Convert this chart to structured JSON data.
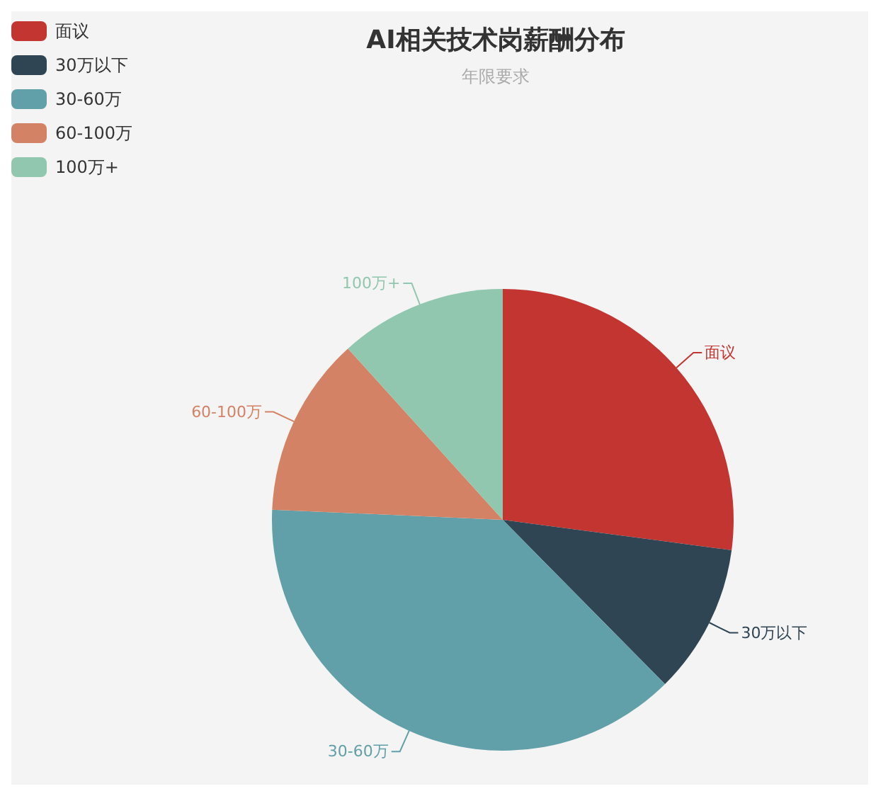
{
  "chart_data": {
    "type": "pie",
    "title": "AI相关技术岗薪酬分布",
    "subtitle": "年限要求",
    "categories": [
      "面议",
      "30万以下",
      "30-60万",
      "60-100万",
      "100万+"
    ],
    "values": [
      27.1,
      10.5,
      38.1,
      12.6,
      11.7
    ],
    "colors": [
      "#c23531",
      "#2f4554",
      "#61a0a8",
      "#d48265",
      "#91c7ae"
    ],
    "legend": "top left"
  }
}
